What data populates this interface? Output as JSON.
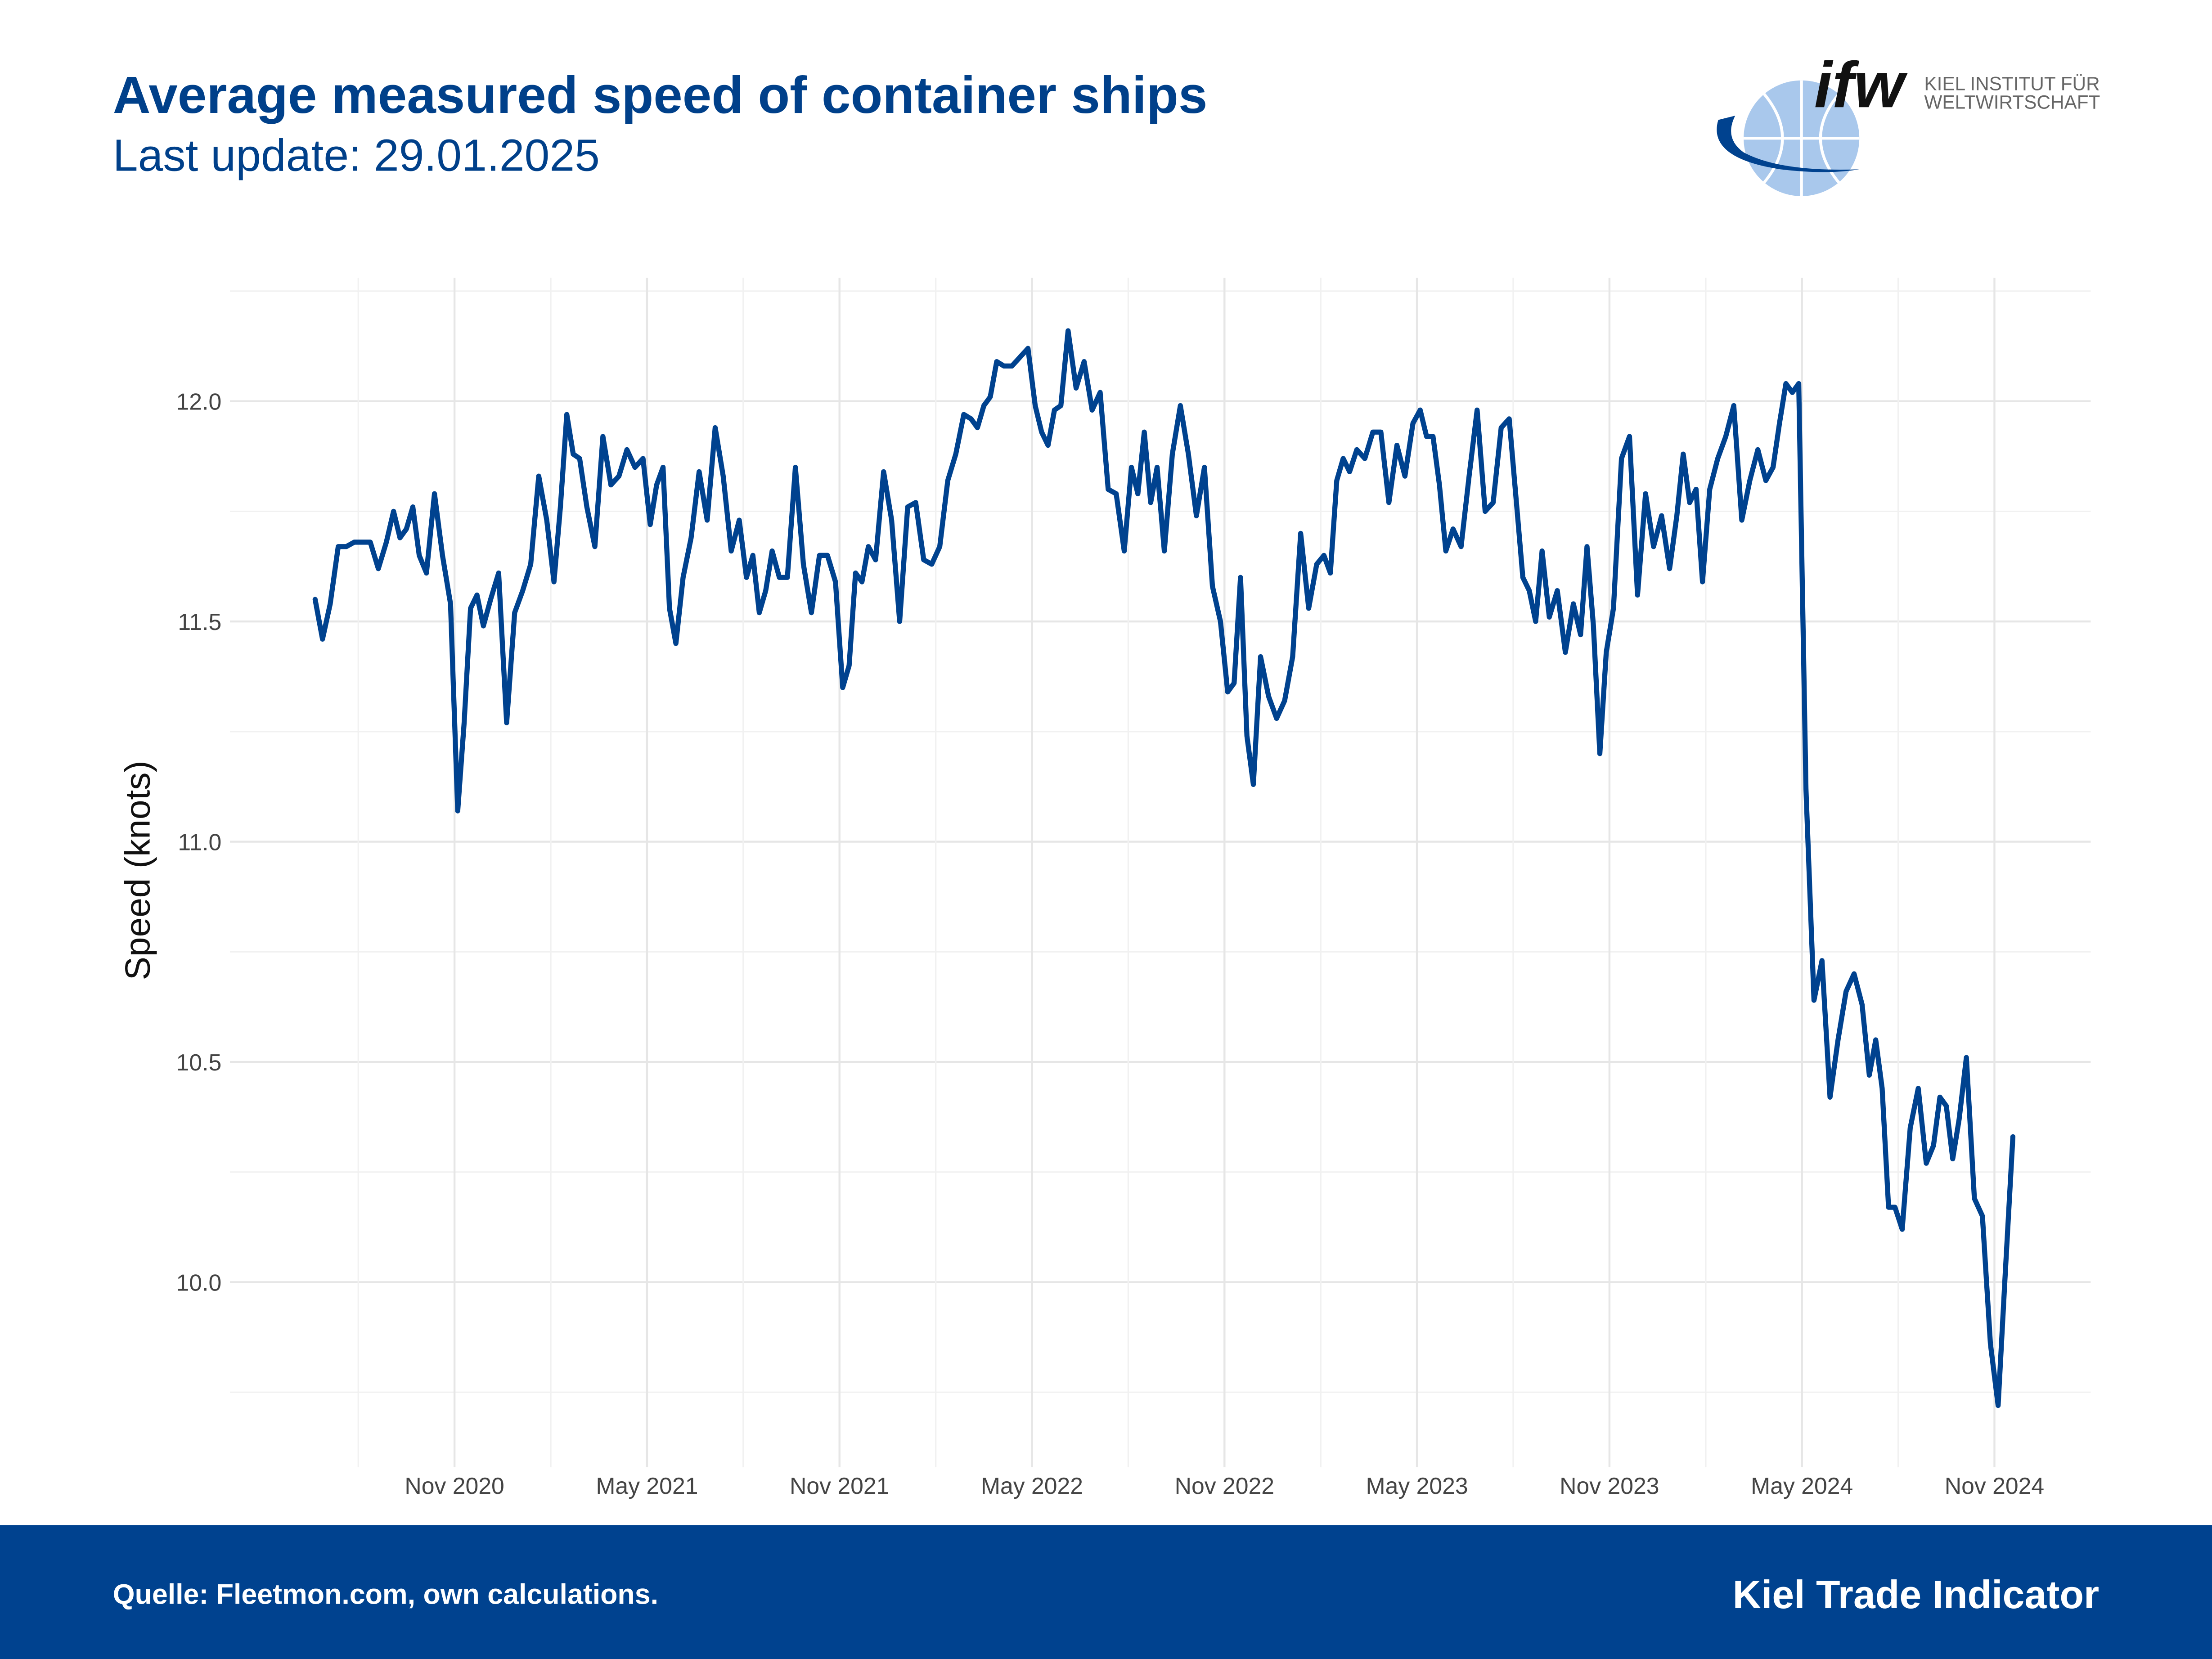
{
  "chart_data": {
    "type": "line",
    "title": "Average measured speed of container ships",
    "subtitle": "Last update: 29.01.2025",
    "y_label": "Speed (knots)",
    "source": "Quelle: Fleetmon.com, own calculations.",
    "footer_title": "Kiel Trade Indicator",
    "logo": {
      "mark": "ifw",
      "line1": "KIEL INSTITUT FÜR",
      "line2": "WELTWIRTSCHAFT"
    },
    "grid": true,
    "xlim": [
      "2020-04",
      "2025-02"
    ],
    "xticks": [
      {
        "value": "2020-11",
        "label": "Nov 2020"
      },
      {
        "value": "2021-05",
        "label": "May 2021"
      },
      {
        "value": "2021-11",
        "label": "Nov 2021"
      },
      {
        "value": "2022-05",
        "label": "May 2022"
      },
      {
        "value": "2022-11",
        "label": "Nov 2022"
      },
      {
        "value": "2023-05",
        "label": "May 2023"
      },
      {
        "value": "2023-11",
        "label": "Nov 2023"
      },
      {
        "value": "2024-05",
        "label": "May 2024"
      },
      {
        "value": "2024-11",
        "label": "Nov 2024"
      }
    ],
    "ylim": [
      9.58,
      12.28
    ],
    "yticks": [
      {
        "value": 10,
        "label": "10.0"
      },
      10.5,
      {
        "value": 11,
        "label": "11.0"
      },
      11.5,
      {
        "value": 12,
        "label": "12.0"
      }
    ],
    "x": [
      "2020-06",
      "2020-06",
      "2020-07",
      "2020-07",
      "2020-07",
      "2020-07",
      "2020-08",
      "2020-08",
      "2020-08",
      "2020-08",
      "2020-09",
      "2020-09",
      "2020-09",
      "2020-09",
      "2020-09",
      "2020-10",
      "2020-10",
      "2020-10",
      "2020-10",
      "2020-11",
      "2020-11",
      "2020-11",
      "2020-11",
      "2020-11",
      "2020-12",
      "2020-12",
      "2020-12",
      "2020-12",
      "2021-01",
      "2021-01",
      "2021-01",
      "2021-01",
      "2021-02",
      "2021-02",
      "2021-02",
      "2021-02",
      "2021-02",
      "2021-03",
      "2021-03",
      "2021-03",
      "2021-03",
      "2021-04",
      "2021-04",
      "2021-04",
      "2021-04",
      "2021-05",
      "2021-05",
      "2021-05",
      "2021-05",
      "2021-05",
      "2021-06",
      "2021-06",
      "2021-06",
      "2021-06",
      "2021-07",
      "2021-07",
      "2021-07",
      "2021-07",
      "2021-08",
      "2021-08",
      "2021-08",
      "2021-08",
      "2021-08",
      "2021-09",
      "2021-09",
      "2021-09",
      "2021-09",
      "2021-10",
      "2021-10",
      "2021-10",
      "2021-10",
      "2021-11",
      "2021-11",
      "2021-11",
      "2021-11",
      "2021-11",
      "2021-12",
      "2021-12",
      "2021-12",
      "2021-12",
      "2022-01",
      "2022-01",
      "2022-01",
      "2022-01",
      "2022-02",
      "2022-02",
      "2022-02",
      "2022-02",
      "2022-03",
      "2022-03",
      "2022-03",
      "2022-03",
      "2022-03",
      "2022-04",
      "2022-04",
      "2022-04",
      "2022-04",
      "2022-05",
      "2022-05",
      "2022-05",
      "2022-05",
      "2022-05",
      "2022-06",
      "2022-06",
      "2022-06",
      "2022-06",
      "2022-07",
      "2022-07",
      "2022-07",
      "2022-07",
      "2022-08",
      "2022-08",
      "2022-08",
      "2022-08",
      "2022-08",
      "2022-09",
      "2022-09",
      "2022-09",
      "2022-09",
      "2022-10",
      "2022-10",
      "2022-10",
      "2022-10",
      "2022-11",
      "2022-11",
      "2022-11",
      "2022-11",
      "2022-11",
      "2022-12",
      "2022-12",
      "2022-12",
      "2022-12",
      "2023-01",
      "2023-01",
      "2023-01",
      "2023-01",
      "2023-02",
      "2023-02",
      "2023-02",
      "2023-02",
      "2023-02",
      "2023-03",
      "2023-03",
      "2023-03",
      "2023-03",
      "2023-04",
      "2023-04",
      "2023-04",
      "2023-04",
      "2023-05",
      "2023-05",
      "2023-05",
      "2023-05",
      "2023-05",
      "2023-06",
      "2023-06",
      "2023-06",
      "2023-06",
      "2023-07",
      "2023-07",
      "2023-07",
      "2023-07",
      "2023-08",
      "2023-08",
      "2023-08",
      "2023-08",
      "2023-08",
      "2023-09",
      "2023-09",
      "2023-09",
      "2023-09",
      "2023-10",
      "2023-10",
      "2023-10",
      "2023-10",
      "2023-10",
      "2023-11",
      "2023-11",
      "2023-11",
      "2023-11",
      "2023-12",
      "2023-12",
      "2023-12",
      "2023-12",
      "2024-01",
      "2024-01",
      "2024-01",
      "2024-01",
      "2024-01",
      "2024-02",
      "2024-02",
      "2024-02",
      "2024-02",
      "2024-03",
      "2024-03",
      "2024-03",
      "2024-03",
      "2024-04",
      "2024-04",
      "2024-04",
      "2024-04",
      "2024-04",
      "2024-05",
      "2024-05",
      "2024-05",
      "2024-05",
      "2024-06",
      "2024-06",
      "2024-06",
      "2024-06",
      "2024-07",
      "2024-07",
      "2024-07",
      "2024-07",
      "2024-07",
      "2024-08",
      "2024-08",
      "2024-08",
      "2024-08",
      "2024-09",
      "2024-09",
      "2024-09",
      "2024-09",
      "2024-09",
      "2024-10",
      "2024-10",
      "2024-10",
      "2024-10",
      "2024-11",
      "2024-11",
      "2024-11"
    ],
    "series": [
      {
        "name": "Speed",
        "color": "#00428f",
        "values": [
          11.55,
          11.46,
          11.54,
          11.67,
          11.67,
          11.68,
          11.68,
          11.68,
          11.62,
          11.68,
          11.75,
          11.69,
          11.71,
          11.76,
          11.65,
          11.61,
          11.79,
          11.65,
          11.54,
          11.07,
          11.27,
          11.53,
          11.56,
          11.49,
          11.55,
          11.61,
          11.27,
          11.52,
          11.57,
          11.63,
          11.83,
          11.73,
          11.59,
          11.76,
          11.97,
          11.88,
          11.87,
          11.76,
          11.67,
          11.92,
          11.81,
          11.83,
          11.89,
          11.85,
          11.87,
          11.72,
          11.81,
          11.85,
          11.53,
          11.45,
          11.6,
          11.69,
          11.84,
          11.73,
          11.94,
          11.83,
          11.66,
          11.73,
          11.6,
          11.65,
          11.52,
          11.57,
          11.66,
          11.6,
          11.6,
          11.85,
          11.63,
          11.52,
          11.65,
          11.65,
          11.59,
          11.35,
          11.4,
          11.61,
          11.59,
          11.67,
          11.64,
          11.84,
          11.73,
          11.5,
          11.76,
          11.77,
          11.64,
          11.63,
          11.67,
          11.82,
          11.88,
          11.97,
          11.96,
          11.94,
          11.99,
          12.01,
          12.09,
          12.08,
          12.08,
          12.1,
          12.12,
          11.99,
          11.93,
          11.9,
          11.98,
          11.99,
          12.16,
          12.03,
          12.09,
          11.98,
          12.02,
          11.8,
          11.79,
          11.66,
          11.85,
          11.79,
          11.93,
          11.77,
          11.85,
          11.66,
          11.88,
          11.99,
          11.88,
          11.74,
          11.85,
          11.58,
          11.5,
          11.34,
          11.36,
          11.6,
          11.24,
          11.13,
          11.42,
          11.33,
          11.28,
          11.32,
          11.42,
          11.7,
          11.53,
          11.63,
          11.65,
          11.61,
          11.82,
          11.87,
          11.84,
          11.89,
          11.87,
          11.93,
          11.93,
          11.77,
          11.9,
          11.83,
          11.95,
          11.98,
          11.92,
          11.92,
          11.81,
          11.66,
          11.71,
          11.67,
          11.83,
          11.98,
          11.75,
          11.77,
          11.94,
          11.96,
          11.77,
          11.6,
          11.57,
          11.5,
          11.66,
          11.51,
          11.57,
          11.43,
          11.54,
          11.47,
          11.67,
          11.49,
          11.2,
          11.43,
          11.53,
          11.87,
          11.92,
          11.56,
          11.79,
          11.67,
          11.74,
          11.62,
          11.74,
          11.88,
          11.77,
          11.8,
          11.59,
          11.8,
          11.87,
          11.92,
          11.99,
          11.73,
          11.82,
          11.89,
          11.82,
          11.85,
          11.95,
          12.04,
          12.02,
          12.04,
          11.12,
          10.64,
          10.73,
          10.42,
          10.55,
          10.66,
          10.7,
          10.63,
          10.47,
          10.55,
          10.44,
          10.17,
          10.17,
          10.12,
          10.35,
          10.44,
          10.27,
          10.31,
          10.42,
          10.4,
          10.28,
          10.37,
          10.51,
          10.19,
          10.15,
          9.86,
          9.72,
          10.03,
          10.33
        ]
      }
    ]
  }
}
